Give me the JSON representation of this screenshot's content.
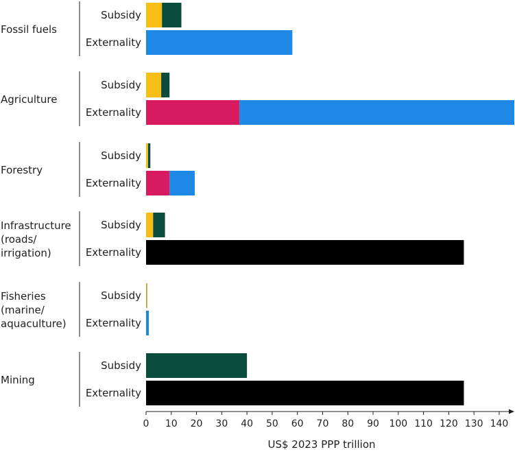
{
  "chart_data": {
    "type": "bar",
    "orientation": "horizontal",
    "stacked": true,
    "title": "",
    "xlabel": "US$ 2023 PPP trillion",
    "ylabel": "",
    "xlim": [
      0,
      146
    ],
    "x_ticks": [
      0,
      10,
      20,
      30,
      40,
      50,
      60,
      70,
      80,
      90,
      100,
      110,
      120,
      130,
      140
    ],
    "grid": false,
    "legend": "none",
    "groups": [
      {
        "name": "Fossil fuels",
        "bars": [
          {
            "label": "Subsidy",
            "segments": [
              {
                "value": 6.3,
                "color": "#F9BE15"
              },
              {
                "value": 7.7,
                "color": "#0A4D3C"
              }
            ]
          },
          {
            "label": "Externality",
            "segments": [
              {
                "value": 58,
                "color": "#1E88E5"
              }
            ]
          }
        ]
      },
      {
        "name": "Agriculture",
        "bars": [
          {
            "label": "Subsidy",
            "segments": [
              {
                "value": 6,
                "color": "#F9BE15"
              },
              {
                "value": 3.3,
                "color": "#0A4D3C"
              }
            ]
          },
          {
            "label": "Externality",
            "segments": [
              {
                "value": 37,
                "color": "#D81B60"
              },
              {
                "value": 109,
                "color": "#1E88E5"
              }
            ]
          }
        ]
      },
      {
        "name": "Forestry",
        "bars": [
          {
            "label": "Subsidy",
            "segments": [
              {
                "value": 0.8,
                "color": "#F9BE15"
              },
              {
                "value": 0.9,
                "color": "#0A4D3C"
              }
            ]
          },
          {
            "label": "Externality",
            "segments": [
              {
                "value": 9.3,
                "color": "#D81B60"
              },
              {
                "value": 10,
                "color": "#1E88E5"
              }
            ]
          }
        ]
      },
      {
        "name": "Infrastructure (roads/ irrigation)",
        "name_lines": [
          "Infrastructure",
          "(roads/",
          "irrigation)"
        ],
        "bars": [
          {
            "label": "Subsidy",
            "segments": [
              {
                "value": 2.8,
                "color": "#F9BE15"
              },
              {
                "value": 4.7,
                "color": "#0A4D3C"
              }
            ]
          },
          {
            "label": "Externality",
            "segments": [
              {
                "value": 126,
                "color": "#000000"
              }
            ]
          }
        ]
      },
      {
        "name": "Fisheries (marine/ aquaculture)",
        "name_lines": [
          "Fisheries",
          "(marine/",
          "aquaculture)"
        ],
        "bars": [
          {
            "label": "Subsidy",
            "segments": [
              {
                "value": 0.5,
                "color": "#C9A227"
              }
            ]
          },
          {
            "label": "Externality",
            "segments": [
              {
                "value": 1.1,
                "color": "#1E88E5"
              }
            ]
          }
        ]
      },
      {
        "name": "Mining",
        "bars": [
          {
            "label": "Subsidy",
            "segments": [
              {
                "value": 40,
                "color": "#0A4D3C"
              }
            ]
          },
          {
            "label": "Externality",
            "segments": [
              {
                "value": 126,
                "color": "#000000"
              }
            ]
          }
        ]
      }
    ]
  }
}
